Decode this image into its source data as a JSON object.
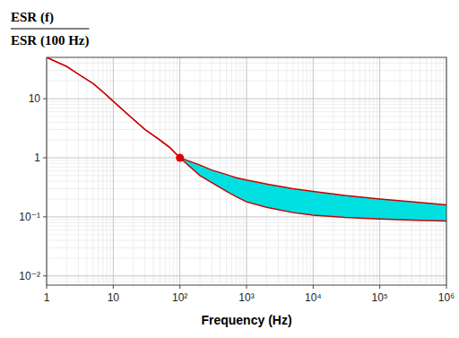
{
  "chart_data": {
    "type": "area",
    "title": [
      "ESR (f)",
      "ESR (100 Hz)"
    ],
    "x_label": "Frequency (Hz)",
    "log": true,
    "grid": true,
    "color": "#00e0e0",
    "xlim": [
      1,
      1000000
    ],
    "ylim": [
      0.007,
      50
    ],
    "xticks": [
      1,
      10,
      {
        "value": 100,
        "label": "10²"
      },
      {
        "value": 1000,
        "label": "10³"
      },
      {
        "value": 10000,
        "label": "10⁴"
      },
      {
        "value": 100000,
        "label": "10⁵"
      },
      {
        "value": 1000000,
        "label": "10⁶"
      }
    ],
    "yticks": [
      {
        "value": 0.01,
        "label": "10⁻²"
      },
      {
        "value": 0.1,
        "label": "10⁻¹"
      },
      1,
      10
    ],
    "x": [
      1,
      2,
      3,
      5,
      7,
      10,
      15,
      20,
      30,
      50,
      70,
      100,
      200,
      300,
      500,
      700,
      1000,
      2000,
      5000,
      10000,
      30000,
      100000,
      300000,
      1000000
    ],
    "series": [
      {
        "type": "line",
        "color": "#cc0000",
        "values": [
          50,
          35,
          26,
          18,
          13,
          9.0,
          6.0,
          4.5,
          3.0,
          2.0,
          1.5,
          1.0,
          0.75,
          0.62,
          0.52,
          0.46,
          0.42,
          0.36,
          0.3,
          0.27,
          0.23,
          0.2,
          0.18,
          0.16
        ]
      },
      {
        "type": "line",
        "color": "#cc0000",
        "values": [
          50,
          35,
          26,
          18,
          13,
          9.0,
          6.0,
          4.5,
          3.0,
          2.0,
          1.5,
          1.0,
          0.5,
          0.38,
          0.27,
          0.22,
          0.18,
          0.145,
          0.118,
          0.107,
          0.098,
          0.092,
          0.088,
          0.085
        ]
      }
    ],
    "reference_point": {
      "x": 100,
      "y": 1.0,
      "color": "#dd0000"
    }
  }
}
